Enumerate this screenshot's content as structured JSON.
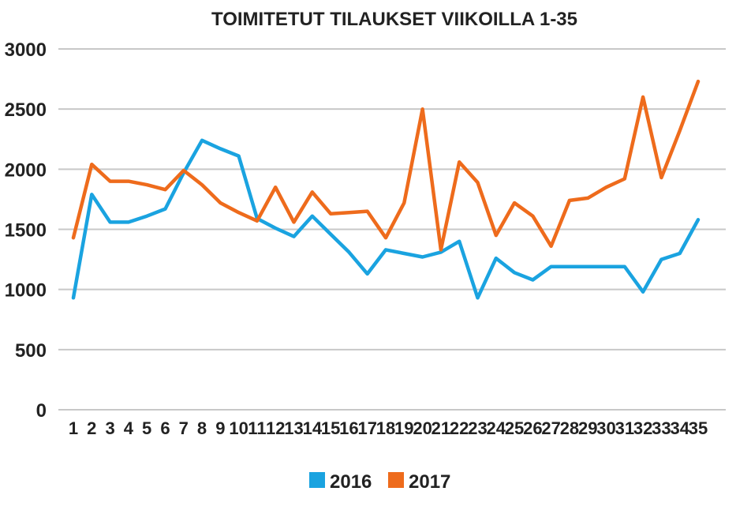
{
  "chart_data": {
    "type": "line",
    "title": "TOIMITETUT TILAUKSET VIIKOILLA 1-35",
    "xlabel": "",
    "ylabel": "",
    "ylim": [
      0,
      3000
    ],
    "yticks": [
      "0",
      "500",
      "1000",
      "1500",
      "2000",
      "2500",
      "3000"
    ],
    "grid": true,
    "legend": "bottom",
    "categories": [
      "1",
      "2",
      "3",
      "4",
      "5",
      "6",
      "7",
      "8",
      "9",
      "10",
      "11",
      "12",
      "13",
      "14",
      "15",
      "16",
      "17",
      "18",
      "19",
      "20",
      "21",
      "22",
      "23",
      "24",
      "25",
      "26",
      "27",
      "28",
      "29",
      "30",
      "31",
      "32",
      "33",
      "34",
      "35"
    ],
    "series": [
      {
        "name": "2016",
        "color": "#1aa3e0",
        "values": [
          930,
          1790,
          1560,
          1560,
          1610,
          1670,
          1970,
          2240,
          2170,
          2110,
          1590,
          1510,
          1440,
          1610,
          1460,
          1310,
          1130,
          1330,
          1300,
          1270,
          1310,
          1400,
          930,
          1260,
          1140,
          1080,
          1190,
          1190,
          1190,
          1190,
          1190,
          980,
          1250,
          1300,
          1580
        ]
      },
      {
        "name": "2017",
        "color": "#ee6b1c",
        "values": [
          1430,
          2040,
          1900,
          1900,
          1870,
          1830,
          1990,
          1870,
          1720,
          1640,
          1570,
          1850,
          1560,
          1810,
          1630,
          1640,
          1650,
          1430,
          1720,
          2500,
          1330,
          2060,
          1890,
          1450,
          1720,
          1610,
          1360,
          1740,
          1760,
          1850,
          1920,
          2600,
          1930,
          2320,
          2730
        ]
      }
    ]
  }
}
